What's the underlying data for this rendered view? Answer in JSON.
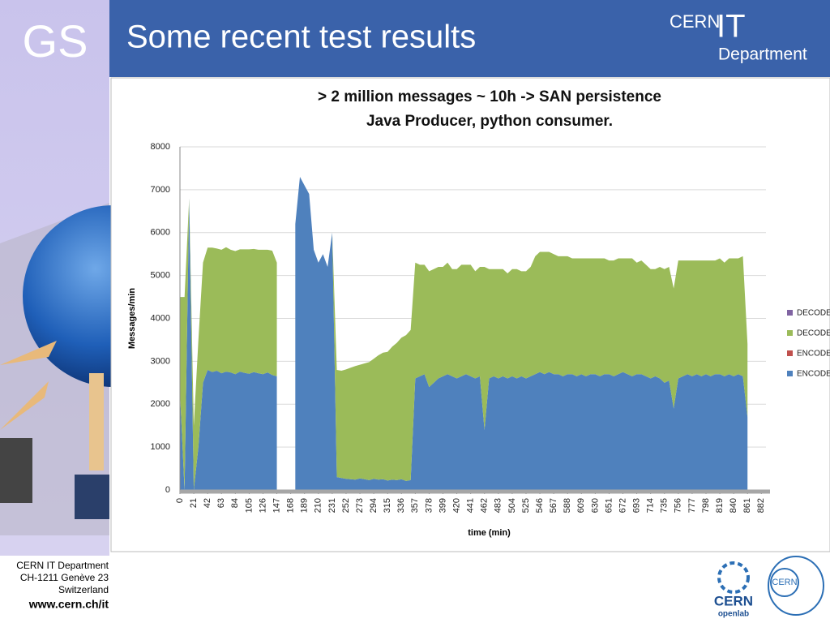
{
  "header": {
    "logo": "GS",
    "title": "Some recent test results",
    "cern": "CERN",
    "it": "IT",
    "department": "Department"
  },
  "footer": {
    "lines": [
      "CERN IT Department",
      "CH-1211 Genève 23",
      "Switzerland"
    ],
    "url": "www.cern.ch/it",
    "openlab": [
      "CERN",
      "openlab"
    ],
    "seal": "CERN"
  },
  "chart_data": {
    "type": "area",
    "title": "> 2 million messages ~ 10h  -> SAN persistence",
    "subtitle": "Java Producer, python consumer.",
    "xlabel": "time (min)",
    "ylabel": "Messages/min",
    "stacked": true,
    "grid": true,
    "legend": "right",
    "x": [
      0,
      7,
      14,
      21,
      28,
      35,
      42,
      49,
      56,
      63,
      70,
      77,
      84,
      91,
      98,
      105,
      112,
      119,
      126,
      133,
      140,
      147,
      154,
      161,
      168,
      175,
      182,
      189,
      196,
      203,
      210,
      217,
      224,
      231,
      238,
      245,
      252,
      259,
      266,
      273,
      280,
      287,
      294,
      301,
      308,
      315,
      322,
      329,
      336,
      343,
      350,
      357,
      364,
      371,
      378,
      385,
      392,
      399,
      406,
      413,
      420,
      427,
      434,
      441,
      448,
      455,
      462,
      469,
      476,
      483,
      490,
      497,
      504,
      511,
      518,
      525,
      532,
      539,
      546,
      553,
      560,
      567,
      574,
      581,
      588,
      595,
      602,
      609,
      616,
      623,
      630,
      637,
      644,
      651,
      658,
      665,
      672,
      679,
      686,
      693,
      700,
      707,
      714,
      721,
      728,
      735,
      742,
      749,
      756,
      763,
      770,
      777,
      784,
      791,
      798,
      805,
      812,
      819,
      826,
      833,
      840,
      847,
      854,
      861
    ],
    "xlim": [
      0,
      889
    ],
    "xticks": [
      0,
      21,
      42,
      63,
      84,
      105,
      126,
      147,
      168,
      189,
      210,
      231,
      252,
      273,
      294,
      315,
      336,
      357,
      378,
      399,
      420,
      441,
      462,
      483,
      504,
      525,
      546,
      567,
      588,
      609,
      630,
      651,
      672,
      693,
      714,
      735,
      756,
      777,
      798,
      819,
      840,
      861,
      882
    ],
    "ylim": [
      0,
      8000
    ],
    "yticks": [
      0,
      1000,
      2000,
      3000,
      4000,
      5000,
      6000,
      7000,
      8000
    ],
    "series": [
      {
        "name": "DECODE",
        "color": "#8064a2"
      },
      {
        "name": "DECODE",
        "color": "#9bbb59",
        "values": [
          2200,
          4500,
          0,
          1500,
          2500,
          2800,
          2850,
          2900,
          2850,
          2880,
          2900,
          2860,
          2870,
          2850,
          2880,
          2900,
          2870,
          2880,
          2900,
          2860,
          2900,
          2650,
          null,
          null,
          null,
          0,
          0,
          0,
          0,
          0,
          0,
          0,
          0,
          0,
          2500,
          2500,
          2550,
          2600,
          2650,
          2650,
          2700,
          2750,
          2800,
          2900,
          2950,
          3000,
          3100,
          3200,
          3300,
          3400,
          3500,
          2700,
          2600,
          2550,
          2700,
          2650,
          2600,
          2550,
          2600,
          2500,
          2550,
          2600,
          2550,
          2600,
          2500,
          2550,
          3800,
          2550,
          2500,
          2550,
          2500,
          2450,
          2500,
          2550,
          2450,
          2500,
          2550,
          2750,
          2800,
          2850,
          2800,
          2800,
          2750,
          2800,
          2750,
          2700,
          2750,
          2700,
          2750,
          2700,
          2700,
          2750,
          2700,
          2650,
          2700,
          2700,
          2650,
          2700,
          2750,
          2600,
          2650,
          2600,
          2550,
          2500,
          2600,
          2650,
          2650,
          2800,
          2750,
          2700,
          2650,
          2700,
          2650,
          2700,
          2650,
          2700,
          2650,
          2700,
          2650,
          2700,
          2750,
          2700,
          2800,
          1700
        ]
      },
      {
        "name": "ENCODE",
        "color": "#c0504d"
      },
      {
        "name": "ENCODE",
        "color": "#4f81bd",
        "values": [
          2300,
          0,
          6800,
          0,
          1000,
          2500,
          2800,
          2750,
          2780,
          2720,
          2760,
          2740,
          2700,
          2760,
          2730,
          2710,
          2750,
          2720,
          2700,
          2740,
          2680,
          2650,
          null,
          null,
          null,
          6200,
          7300,
          7100,
          6900,
          5600,
          5300,
          5500,
          5200,
          6000,
          300,
          280,
          260,
          250,
          240,
          270,
          250,
          230,
          260,
          240,
          250,
          220,
          240,
          230,
          250,
          210,
          230,
          2600,
          2650,
          2700,
          2400,
          2500,
          2600,
          2650,
          2700,
          2650,
          2600,
          2650,
          2700,
          2650,
          2600,
          2650,
          1400,
          2600,
          2650,
          2600,
          2650,
          2600,
          2650,
          2600,
          2650,
          2600,
          2650,
          2700,
          2750,
          2700,
          2750,
          2700,
          2700,
          2650,
          2700,
          2700,
          2650,
          2700,
          2650,
          2700,
          2700,
          2650,
          2700,
          2700,
          2650,
          2700,
          2750,
          2700,
          2650,
          2700,
          2700,
          2650,
          2600,
          2650,
          2600,
          2500,
          2550,
          1900,
          2600,
          2650,
          2700,
          2650,
          2700,
          2650,
          2700,
          2650,
          2700,
          2700,
          2650,
          2700,
          2650,
          2700,
          2650,
          1700
        ]
      }
    ]
  }
}
